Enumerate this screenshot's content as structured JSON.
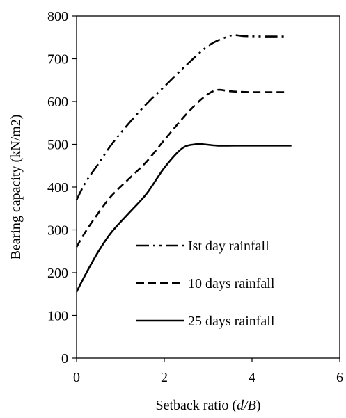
{
  "chart_data": {
    "type": "line",
    "title": "",
    "xlabel_prefix": "Setback ratio (",
    "xlabel_var": "d/B",
    "xlabel_suffix": ")",
    "ylabel": "Bearing capacity (kN/m2)",
    "xlim": [
      0,
      6
    ],
    "ylim": [
      0,
      800
    ],
    "xticks": [
      0,
      2,
      4,
      6
    ],
    "yticks": [
      0,
      100,
      200,
      300,
      400,
      500,
      600,
      700,
      800
    ],
    "grid": false,
    "legend_position": "bottom-right",
    "series": [
      {
        "name": "Ist day rainfall",
        "style": "dash-dot-dot",
        "color": "#000000",
        "x": [
          0,
          0.2,
          0.5,
          0.8,
          1.2,
          1.6,
          2.0,
          2.5,
          3.0,
          3.4,
          3.6,
          3.8,
          4.2,
          4.8
        ],
        "y": [
          370,
          410,
          455,
          500,
          550,
          595,
          635,
          685,
          730,
          750,
          755,
          753,
          752,
          752
        ]
      },
      {
        "name": "10 days rainfall",
        "style": "dashed",
        "color": "#000000",
        "x": [
          0,
          0.2,
          0.5,
          0.8,
          1.2,
          1.6,
          2.0,
          2.5,
          2.9,
          3.2,
          3.5,
          4.0,
          4.8
        ],
        "y": [
          260,
          295,
          340,
          380,
          420,
          460,
          510,
          570,
          610,
          627,
          624,
          622,
          622
        ]
      },
      {
        "name": "25 days rainfall",
        "style": "solid",
        "color": "#000000",
        "x": [
          0,
          0.2,
          0.5,
          0.8,
          1.2,
          1.6,
          2.0,
          2.4,
          2.7,
          2.9,
          3.2,
          3.6,
          4.2,
          4.9
        ],
        "y": [
          155,
          195,
          250,
          295,
          340,
          385,
          445,
          490,
          500,
          500,
          497,
          497,
          497,
          497
        ]
      }
    ]
  }
}
